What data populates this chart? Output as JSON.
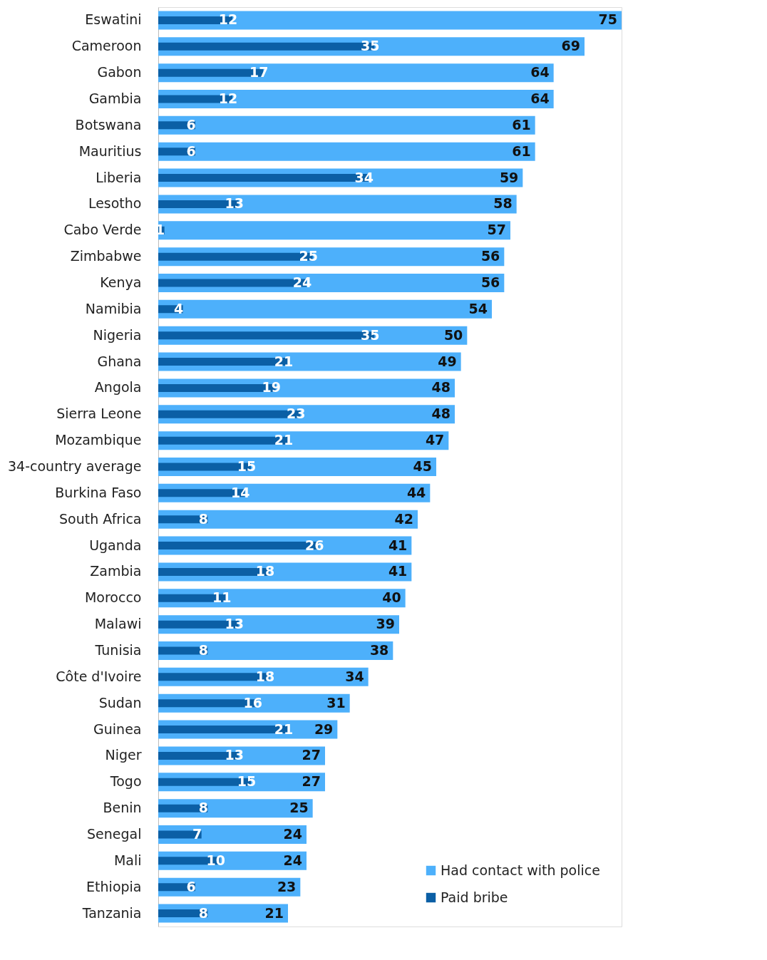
{
  "chart_data": {
    "type": "bar",
    "orientation": "horizontal",
    "data_labels": true,
    "legend": "bottom right",
    "tick_labels": "y",
    "categories": [
      "Eswatini",
      "Cameroon",
      "Gabon",
      "Gambia",
      "Botswana",
      "Mauritius",
      "Liberia",
      "Lesotho",
      "Cabo Verde",
      "Zimbabwe",
      "Kenya",
      "Namibia",
      "Nigeria",
      "Ghana",
      "Angola",
      "Sierra Leone",
      "Mozambique",
      "34-country average",
      "Burkina Faso",
      "South Africa",
      "Uganda",
      "Zambia",
      "Morocco",
      "Malawi",
      "Tunisia",
      "Côte d'Ivoire",
      "Sudan",
      "Guinea",
      "Niger",
      "Togo",
      "Benin",
      "Senegal",
      "Mali",
      "Ethiopia",
      "Tanzania"
    ],
    "series": [
      {
        "name": "Had contact with police",
        "color": "#4db0fb",
        "values": [
          75,
          69,
          64,
          64,
          61,
          61,
          59,
          58,
          57,
          56,
          56,
          54,
          50,
          49,
          48,
          48,
          47,
          45,
          44,
          42,
          41,
          41,
          40,
          39,
          38,
          34,
          31,
          29,
          27,
          27,
          25,
          24,
          24,
          23,
          21
        ]
      },
      {
        "name": "Paid bribe",
        "color": "#0b5fa5",
        "values": [
          12,
          35,
          17,
          12,
          6,
          6,
          34,
          13,
          1,
          25,
          24,
          4,
          35,
          21,
          19,
          23,
          21,
          15,
          14,
          8,
          26,
          18,
          11,
          13,
          8,
          18,
          16,
          21,
          13,
          15,
          8,
          7,
          10,
          6,
          8
        ]
      }
    ]
  }
}
